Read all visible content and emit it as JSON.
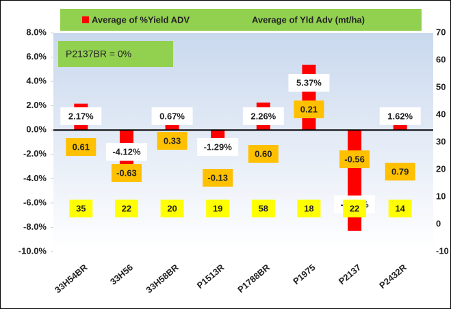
{
  "chart_data": {
    "type": "bar",
    "categories": [
      "33H54BR",
      "33H56",
      "33H58BR",
      "P1513R",
      "P1788BR",
      "P1975",
      "P2137",
      "P2432R"
    ],
    "series": [
      {
        "name": "Average of %Yield ADV",
        "color": "#ff0000",
        "values": [
          2.17,
          -4.12,
          0.67,
          -1.29,
          2.26,
          5.37,
          -8.3,
          1.62
        ],
        "value_labels": [
          "2.17%",
          "-4.12%",
          "0.67%",
          "-1.29%",
          "2.26%",
          "5.37%",
          "-8.30%",
          "1.62%"
        ]
      },
      {
        "name": "Average of Yld Adv (mt/ha)",
        "color": "#ffc000",
        "axis": "y2",
        "values": [
          0.61,
          -0.63,
          0.33,
          -0.13,
          0.6,
          0.21,
          -0.56,
          0.79
        ],
        "value_labels": [
          "0.61",
          "-0.63",
          "0.33",
          "-0.13",
          "0.60",
          "0.21",
          "-0.56",
          "0.79"
        ]
      }
    ],
    "counts": [
      35,
      22,
      20,
      19,
      58,
      18,
      22,
      14
    ],
    "annotation": "P2137BR = 0%",
    "ylim": [
      -10,
      8
    ],
    "yticks": [
      {
        "value": 8,
        "label": "8.0%"
      },
      {
        "value": 6,
        "label": "6.0%"
      },
      {
        "value": 4,
        "label": "4.0%"
      },
      {
        "value": 2,
        "label": "2.0%"
      },
      {
        "value": 0,
        "label": "0.0%"
      },
      {
        "value": -2,
        "label": "-2.0%"
      },
      {
        "value": -4,
        "label": "-4.0%"
      },
      {
        "value": -6,
        "label": "-6.0%"
      },
      {
        "value": -8,
        "label": "-8.0%"
      },
      {
        "value": -10,
        "label": "-10.0%"
      }
    ],
    "y2lim": [
      -10,
      70
    ],
    "y2ticks": [
      70,
      60,
      50,
      40,
      30,
      20,
      10,
      0,
      -10
    ]
  }
}
